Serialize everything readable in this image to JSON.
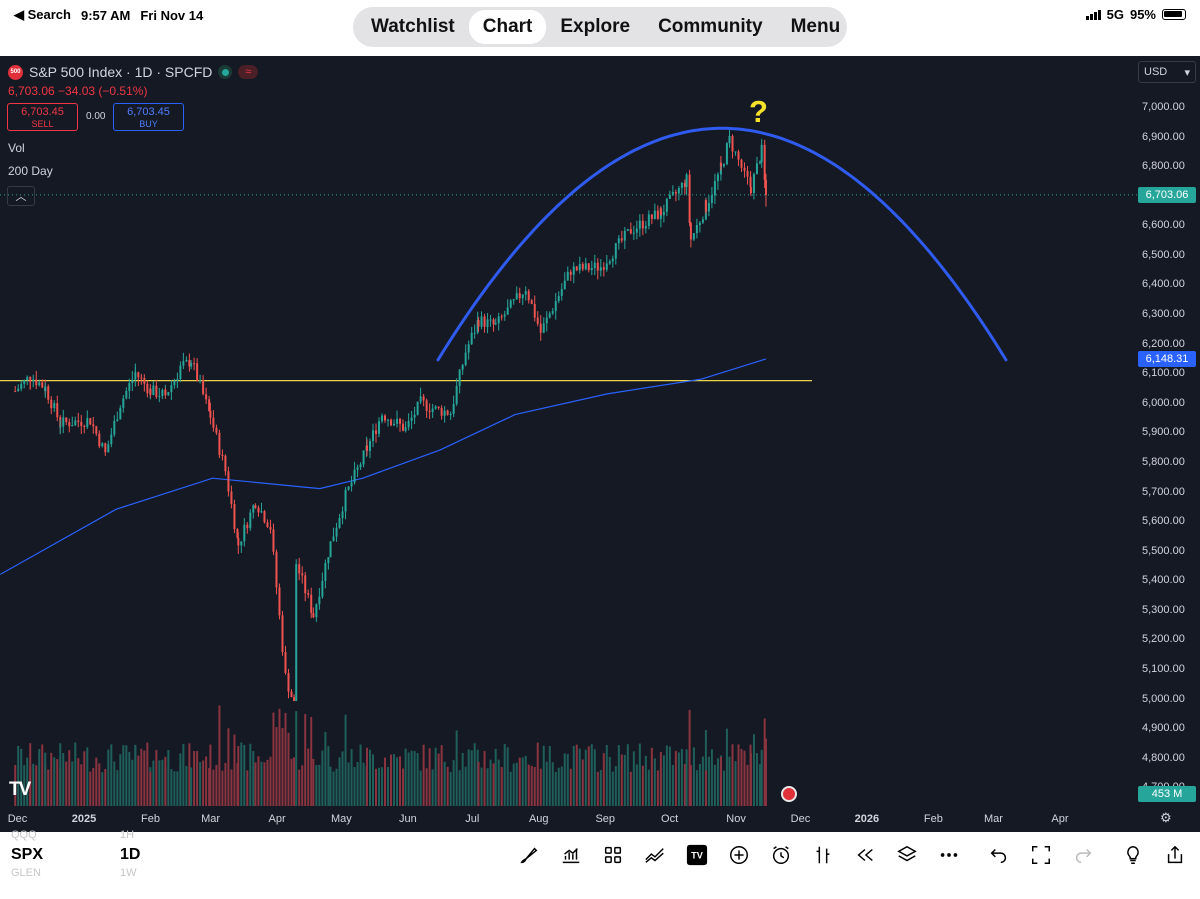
{
  "status_bar": {
    "back_label": "◀ Search",
    "time": "9:57 AM",
    "date": "Fri Nov 14",
    "network": "5G",
    "battery": "95%"
  },
  "nav": {
    "tabs": [
      {
        "label": "Watchlist",
        "active": false
      },
      {
        "label": "Chart",
        "active": true
      },
      {
        "label": "Explore",
        "active": false
      },
      {
        "label": "Community",
        "active": false
      },
      {
        "label": "Menu",
        "active": false
      }
    ]
  },
  "chart_header": {
    "logo_text": "500",
    "title": "S&P 500 Index · 1D · SPCFD",
    "price_line": "6,703.06  −34.03 (−0.51%)",
    "sell_price": "6,703.45",
    "sell_label": "SELL",
    "spread": "0.00",
    "buy_price": "6,703.45",
    "buy_label": "BUY",
    "indicator_vol": "Vol",
    "indicator_ma": "200 Day",
    "collapse_icon": "chevron-up-icon",
    "currency": "USD"
  },
  "price_tags": {
    "last_price": "6,703.06",
    "ma_value": "6,148.31",
    "volume": "453 M"
  },
  "colors": {
    "background": "#151924",
    "up": "#26a69a",
    "down": "#ef5350",
    "ma": "#2962ff",
    "arc": "#2f5bf0",
    "support": "#e8d34a",
    "question": "#f5e12a"
  },
  "annotation": {
    "question_mark": "?"
  },
  "footer": {
    "branding": "TV"
  },
  "chart_data": {
    "type": "candlestick",
    "title": "S&P 500 Index · 1D · SPCFD",
    "y_axis_ticks": [
      "7,000.00",
      "6,900.00",
      "6,800.00",
      "6,700.00",
      "6,600.00",
      "6,500.00",
      "6,400.00",
      "6,300.00",
      "6,200.00",
      "6,100.00",
      "6,000.00",
      "5,900.00",
      "5,800.00",
      "5,700.00",
      "5,600.00",
      "5,500.00",
      "5,400.00",
      "5,300.00",
      "5,200.00",
      "5,100.00",
      "5,000.00",
      "4,900.00",
      "4,800.00",
      "4,700.00"
    ],
    "ylim": [
      4690,
      7050
    ],
    "x_axis_ticks": [
      {
        "label": "Dec",
        "bold": false
      },
      {
        "label": "2025",
        "bold": true
      },
      {
        "label": "Feb",
        "bold": false
      },
      {
        "label": "Mar",
        "bold": false
      },
      {
        "label": "Apr",
        "bold": false
      },
      {
        "label": "May",
        "bold": false
      },
      {
        "label": "Jun",
        "bold": false
      },
      {
        "label": "Jul",
        "bold": false
      },
      {
        "label": "Aug",
        "bold": false
      },
      {
        "label": "Sep",
        "bold": false
      },
      {
        "label": "Oct",
        "bold": false
      },
      {
        "label": "Nov",
        "bold": false
      },
      {
        "label": "Dec",
        "bold": false
      },
      {
        "label": "2026",
        "bold": true
      },
      {
        "label": "Feb",
        "bold": false
      },
      {
        "label": "Mar",
        "bold": false
      },
      {
        "label": "Apr",
        "bold": false
      }
    ],
    "last_price": 6703.06,
    "ma200_last": 6148.31,
    "support_line": 6075,
    "arc_peak": 6928,
    "series": [
      {
        "name": "Price",
        "points": [
          [
            "2024-11-29",
            6040
          ],
          [
            "2024-12-06",
            6090
          ],
          [
            "2024-12-13",
            6051
          ],
          [
            "2024-12-20",
            5930
          ],
          [
            "2025-01-03",
            5942
          ],
          [
            "2025-01-10",
            5827
          ],
          [
            "2025-01-17",
            5997
          ],
          [
            "2025-01-24",
            6101
          ],
          [
            "2025-01-31",
            6040
          ],
          [
            "2025-02-07",
            6026
          ],
          [
            "2025-02-14",
            6115
          ],
          [
            "2025-02-19",
            6144
          ],
          [
            "2025-02-28",
            5955
          ],
          [
            "2025-03-07",
            5770
          ],
          [
            "2025-03-13",
            5521
          ],
          [
            "2025-03-21",
            5667
          ],
          [
            "2025-03-28",
            5580
          ],
          [
            "2025-04-04",
            5074
          ],
          [
            "2025-04-08",
            4982
          ],
          [
            "2025-04-09",
            5457
          ],
          [
            "2025-04-17",
            5282
          ],
          [
            "2025-04-25",
            5525
          ],
          [
            "2025-05-02",
            5686
          ],
          [
            "2025-05-12",
            5844
          ],
          [
            "2025-05-19",
            5963
          ],
          [
            "2025-05-30",
            5911
          ],
          [
            "2025-06-06",
            6000
          ],
          [
            "2025-06-13",
            5977
          ],
          [
            "2025-06-20",
            5967
          ],
          [
            "2025-06-27",
            6173
          ],
          [
            "2025-07-03",
            6279
          ],
          [
            "2025-07-11",
            6260
          ],
          [
            "2025-07-25",
            6389
          ],
          [
            "2025-08-01",
            6238
          ],
          [
            "2025-08-15",
            6449
          ],
          [
            "2025-08-29",
            6460
          ],
          [
            "2025-09-12",
            6584
          ],
          [
            "2025-09-26",
            6643
          ],
          [
            "2025-10-08",
            6753
          ],
          [
            "2025-10-10",
            6552
          ],
          [
            "2025-10-17",
            6664
          ],
          [
            "2025-10-24",
            6791
          ],
          [
            "2025-10-28",
            6890
          ],
          [
            "2025-11-04",
            6771
          ],
          [
            "2025-11-07",
            6728
          ],
          [
            "2025-11-12",
            6850
          ],
          [
            "2025-11-14",
            6703
          ]
        ]
      }
    ]
  }
}
